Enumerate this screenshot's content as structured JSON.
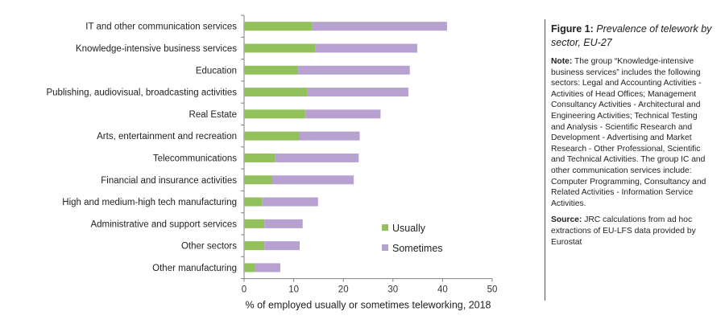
{
  "figure": {
    "number": "Figure 1:",
    "title": "Prevalence of telework by sector, EU-27",
    "note_label": "Note:",
    "note_text": "The group “Knowledge-intensive business services” includes the following sectors: Legal and Accounting Activities - Activities of Head Offices; Management Consultancy Activities - Architectural and Engineering Activities; Technical Testing and Analysis - Scientific Research and Development - Advertising and Market Research - Other Professional, Scientific and Technical Activities. The group IC and other communication services include: Computer Programming, Consultancy and Related Activities - Information Service Activities.",
    "source_label": "Source:",
    "source_text": "JRC calculations from ad hoc extractions of EU-LFS data provided by Eurostat"
  },
  "chart_data": {
    "type": "bar",
    "orientation": "horizontal",
    "stacked": true,
    "categories": [
      "IT and other communication services",
      "Knowledge-intensive business services",
      "Education",
      "Publishing, audiovisual, broadcasting activities",
      "Real Estate",
      "Arts, entertainment and recreation",
      "Telecommunications",
      "Financial and insurance activities",
      "High and medium-high tech manufacturing",
      "Administrative and support services",
      "Other sectors",
      "Other manufacturing"
    ],
    "series": [
      {
        "name": "Usually",
        "color": "#92c05b",
        "values": [
          13.7,
          14.4,
          10.9,
          12.8,
          12.3,
          11.2,
          6.3,
          5.6,
          3.6,
          4.1,
          4.1,
          2.2
        ]
      },
      {
        "name": "Sometimes",
        "color": "#b7a1d0",
        "values": [
          27.2,
          20.5,
          22.5,
          20.3,
          15.2,
          12.1,
          16.8,
          16.5,
          11.3,
          7.7,
          7.1,
          5.1
        ]
      }
    ],
    "xlabel": "% of employed usually or sometimes teleworking, 2018",
    "xlim": [
      0,
      50
    ],
    "xticks": [
      "0",
      "10",
      "20",
      "30",
      "40",
      "50"
    ],
    "grid": false,
    "legend_position": "bottom-right"
  }
}
